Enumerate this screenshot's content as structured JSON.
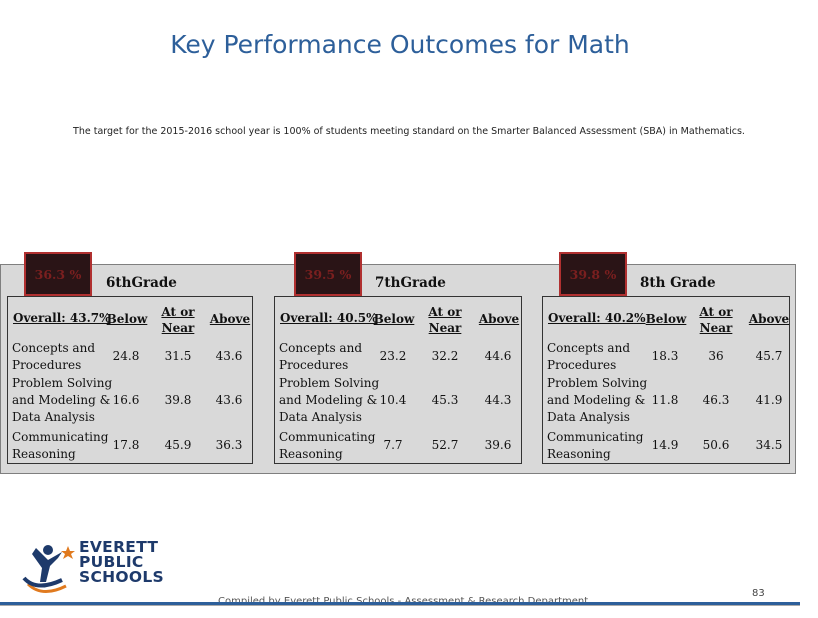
{
  "title": "Key Performance Outcomes for Math",
  "target_note": "The target for the 2015-2016 school year is 100% of students meeting standard on the Smarter Balanced Assessment (SBA) in Mathematics.",
  "colors": {
    "title": "#2d5f9a",
    "pct_box_bg": "#2a1416",
    "pct_box_border": "#b03030",
    "panel": "#d9d9d9"
  },
  "columns": {
    "below": "Below",
    "at_or_near_1": "At or",
    "at_or_near_2": "Near",
    "above": "Above"
  },
  "grades": [
    {
      "percent": "36.3 %",
      "label": "6thGrade",
      "overall": "Overall: 43.7%",
      "rows": [
        {
          "label_1": "Concepts and",
          "label_2": "Procedures",
          "below": "24.8",
          "at_near": "31.5",
          "above": "43.6"
        },
        {
          "label_1": "Problem Solving",
          "label_2": "and Modeling &",
          "label_3": "Data Analysis",
          "below": "16.6",
          "at_near": "39.8",
          "above": "43.6"
        },
        {
          "label_1": "Communicating",
          "label_2": "Reasoning",
          "below": "17.8",
          "at_near": "45.9",
          "above": "36.3"
        }
      ]
    },
    {
      "percent": "39.5 %",
      "label": "7thGrade",
      "overall": "Overall: 40.5%",
      "rows": [
        {
          "label_1": "Concepts and",
          "label_2": "Procedures",
          "below": "23.2",
          "at_near": "32.2",
          "above": "44.6"
        },
        {
          "label_1": "Problem Solving",
          "label_2": "and Modeling &",
          "label_3": "Data Analysis",
          "below": "10.4",
          "at_near": "45.3",
          "above": "44.3"
        },
        {
          "label_1": "Communicating",
          "label_2": "Reasoning",
          "below": "7.7",
          "at_near": "52.7",
          "above": "39.6"
        }
      ]
    },
    {
      "percent": "39.8 %",
      "label": "8th Grade",
      "overall": "Overall: 40.2%",
      "rows": [
        {
          "label_1": "Concepts and",
          "label_2": "Procedures",
          "below": "18.3",
          "at_near": "36",
          "above": "45.7"
        },
        {
          "label_1": "Problem Solving",
          "label_2": "and Modeling &",
          "label_3": "Data Analysis",
          "below": "11.8",
          "at_near": "46.3",
          "above": "41.9"
        },
        {
          "label_1": "Communicating",
          "label_2": "Reasoning",
          "below": "14.9",
          "at_near": "50.6",
          "above": "34.5"
        }
      ]
    }
  ],
  "logo": {
    "line1": "EVERETT",
    "line2": "PUBLIC",
    "line3": "SCHOOLS"
  },
  "footer": {
    "credit": "Compiled by Everett Public Schools - Assessment & Research Department",
    "page_number": "83"
  }
}
